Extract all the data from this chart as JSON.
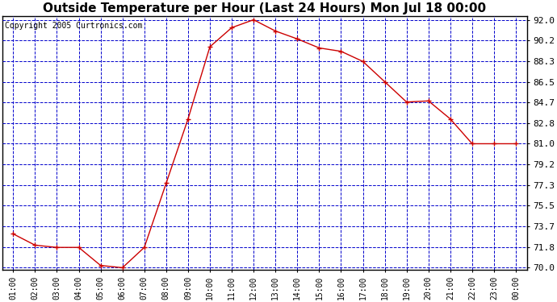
{
  "title": "Outside Temperature per Hour (Last 24 Hours) Mon Jul 18 00:00",
  "copyright": "Copyright 2005 Curtronics.com",
  "x_labels": [
    "01:00",
    "02:00",
    "03:00",
    "04:00",
    "05:00",
    "06:00",
    "07:00",
    "08:00",
    "09:00",
    "10:00",
    "11:00",
    "12:00",
    "13:00",
    "14:00",
    "15:00",
    "16:00",
    "17:00",
    "18:00",
    "19:00",
    "20:00",
    "21:00",
    "22:00",
    "23:00",
    "00:00"
  ],
  "y_values": [
    73.0,
    72.0,
    71.8,
    71.8,
    70.2,
    70.0,
    71.8,
    77.5,
    83.2,
    89.6,
    91.3,
    92.0,
    91.0,
    90.3,
    89.5,
    89.2,
    88.3,
    86.5,
    84.7,
    84.8,
    83.2,
    81.0,
    81.0,
    81.0
  ],
  "line_color": "#cc0000",
  "marker_color": "#cc0000",
  "grid_color": "#0000cc",
  "bg_color": "#ffffff",
  "plot_bg_color": "#ffffff",
  "title_fontsize": 11,
  "copyright_fontsize": 7,
  "tick_fontsize": 7,
  "ytick_fontsize": 8,
  "y_min": 70.0,
  "y_max": 92.0,
  "y_ticks": [
    70.0,
    71.8,
    73.7,
    75.5,
    77.3,
    79.2,
    81.0,
    82.8,
    84.7,
    86.5,
    88.3,
    90.2,
    92.0
  ]
}
